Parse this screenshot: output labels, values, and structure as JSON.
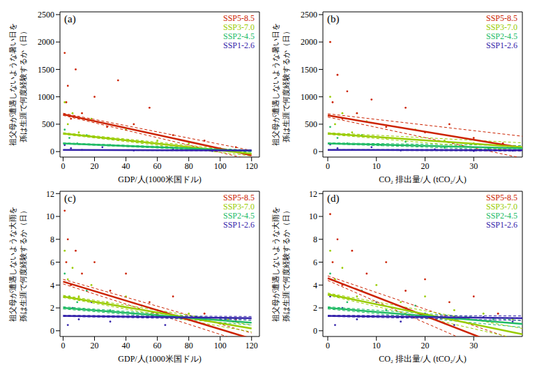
{
  "chart_data": [
    {
      "type": "scatter",
      "panel_label": "(a)",
      "xlabel": "GDP/人(1000米国ドル)",
      "ylabel": [
        "祖父母が遭遇しないような暑い日を",
        "孫は生涯で何度経験するか（日）"
      ],
      "xlim": [
        -2,
        125
      ],
      "ylim": [
        -100,
        2550
      ],
      "xticks": [
        0,
        20,
        40,
        60,
        80,
        100,
        120
      ],
      "yticks": [
        0,
        500,
        1000,
        1500,
        2000,
        2500
      ],
      "legend": "upper right",
      "series": [
        {
          "name": "SSP5-8.5",
          "color": "#cc2200",
          "x": [
            1,
            2,
            3,
            5,
            8,
            12,
            20,
            28,
            35,
            45,
            55,
            70,
            90,
            110
          ],
          "values": [
            1800,
            900,
            1200,
            600,
            1500,
            700,
            1000,
            450,
            1300,
            500,
            800,
            300,
            200,
            80
          ],
          "fit_x": [
            0,
            120
          ],
          "fit_values": [
            680,
            -70
          ],
          "band_upper": [
            700,
            20
          ],
          "band_lower": [
            660,
            -150
          ]
        },
        {
          "name": "SSP3-7.0",
          "color": "#99cc00",
          "x": [
            1,
            3,
            6,
            10,
            18,
            25,
            40,
            60,
            80,
            100
          ],
          "values": [
            900,
            500,
            700,
            350,
            600,
            250,
            400,
            200,
            150,
            60
          ],
          "fit_x": [
            0,
            120
          ],
          "fit_values": [
            330,
            -40
          ],
          "band_upper": [
            345,
            0
          ],
          "band_lower": [
            315,
            -80
          ]
        },
        {
          "name": "SSP2-4.5",
          "color": "#22bb66",
          "x": [
            1,
            4,
            9,
            15,
            30,
            50,
            75,
            100
          ],
          "values": [
            400,
            250,
            150,
            300,
            120,
            180,
            60,
            40
          ],
          "fit_x": [
            0,
            120
          ],
          "fit_values": [
            150,
            10
          ],
          "band_upper": [
            160,
            30
          ],
          "band_lower": [
            140,
            -10
          ]
        },
        {
          "name": "SSP1-2.6",
          "color": "#3322aa",
          "x": [
            1,
            5,
            12,
            25,
            45,
            70,
            95,
            115
          ],
          "values": [
            120,
            60,
            30,
            80,
            20,
            40,
            10,
            15
          ],
          "fit_x": [
            0,
            120
          ],
          "fit_values": [
            30,
            20
          ],
          "band_upper": [
            35,
            28
          ],
          "band_lower": [
            25,
            12
          ]
        }
      ]
    },
    {
      "type": "scatter",
      "panel_label": "(b)",
      "xlabel": "CO₂ 排出量/人 (tCO₂/人)",
      "ylabel": [
        "祖父母が遭遇しないような暑い日を",
        "孫は生涯で何度経験するか（日）"
      ],
      "xlim": [
        -1,
        40
      ],
      "ylim": [
        -100,
        2550
      ],
      "xticks": [
        0,
        10,
        20,
        30
      ],
      "yticks": [
        0,
        500,
        1000,
        1500,
        2000,
        2500
      ],
      "legend": "upper right",
      "series": [
        {
          "name": "SSP5-8.5",
          "color": "#cc2200",
          "x": [
            0.5,
            1,
            2,
            3,
            4,
            6,
            9,
            12,
            16,
            20,
            25,
            30,
            36
          ],
          "values": [
            2000,
            900,
            1400,
            600,
            1100,
            700,
            950,
            450,
            800,
            350,
            500,
            250,
            150
          ],
          "fit_x": [
            0,
            40
          ],
          "fit_values": [
            660,
            70
          ],
          "band_upper": [
            690,
            280
          ],
          "band_lower": [
            630,
            -120
          ]
        },
        {
          "name": "SSP3-7.0",
          "color": "#99cc00",
          "x": [
            0.5,
            1.5,
            3,
            5,
            8,
            12,
            18,
            24,
            30,
            37
          ],
          "values": [
            1000,
            500,
            700,
            350,
            550,
            250,
            400,
            200,
            150,
            100
          ],
          "fit_x": [
            0,
            40
          ],
          "fit_values": [
            330,
            80
          ],
          "band_upper": [
            345,
            160
          ],
          "band_lower": [
            315,
            10
          ]
        },
        {
          "name": "SSP2-4.5",
          "color": "#22bb66",
          "x": [
            0.5,
            2,
            4,
            7,
            11,
            16,
            24,
            33
          ],
          "values": [
            450,
            250,
            150,
            300,
            120,
            180,
            70,
            50
          ],
          "fit_x": [
            0,
            40
          ],
          "fit_values": [
            150,
            60
          ],
          "band_upper": [
            160,
            110
          ],
          "band_lower": [
            140,
            20
          ]
        },
        {
          "name": "SSP1-2.6",
          "color": "#3322aa",
          "x": [
            0.5,
            2,
            5,
            9,
            15,
            22,
            30,
            38
          ],
          "values": [
            130,
            60,
            30,
            80,
            20,
            40,
            10,
            15
          ],
          "fit_x": [
            0,
            40
          ],
          "fit_values": [
            30,
            25
          ],
          "band_upper": [
            35,
            40
          ],
          "band_lower": [
            25,
            10
          ]
        }
      ]
    },
    {
      "type": "scatter",
      "panel_label": "(c)",
      "xlabel": "GDP/人(1000米国ドル)",
      "ylabel": [
        "祖父母が遭遇しないような大雨を",
        "孫は生涯で何度経験するか（日）"
      ],
      "xlim": [
        -2,
        125
      ],
      "ylim": [
        -0.5,
        12.2
      ],
      "xticks": [
        0,
        20,
        40,
        60,
        80,
        100,
        120
      ],
      "yticks": [
        0,
        2,
        4,
        6,
        8,
        10,
        12
      ],
      "legend": "upper right",
      "series": [
        {
          "name": "SSP5-8.5",
          "color": "#cc2200",
          "x": [
            1,
            2,
            3,
            5,
            8,
            12,
            20,
            30,
            40,
            55,
            70,
            90,
            110
          ],
          "values": [
            10.5,
            6,
            8,
            4,
            7,
            5,
            6,
            3.5,
            5,
            2.5,
            3,
            1.5,
            1
          ],
          "fit_x": [
            0,
            120
          ],
          "fit_values": [
            4.3,
            -0.7
          ],
          "band_upper": [
            4.5,
            -0.2
          ],
          "band_lower": [
            4.1,
            -1.2
          ]
        },
        {
          "name": "SSP3-7.0",
          "color": "#99cc00",
          "x": [
            1,
            3,
            6,
            10,
            18,
            28,
            40,
            60,
            80,
            105
          ],
          "values": [
            7,
            4.5,
            5.5,
            3,
            4,
            2.5,
            3,
            1.8,
            1.5,
            1
          ],
          "fit_x": [
            0,
            120
          ],
          "fit_values": [
            3.0,
            0.2
          ],
          "band_upper": [
            3.1,
            0.5
          ],
          "band_lower": [
            2.9,
            -0.1
          ]
        },
        {
          "name": "SSP2-4.5",
          "color": "#22bb66",
          "x": [
            1,
            4,
            9,
            15,
            30,
            50,
            75,
            100
          ],
          "values": [
            5,
            3,
            2.5,
            3.5,
            1.8,
            2.2,
            1.2,
            1
          ],
          "fit_x": [
            0,
            120
          ],
          "fit_values": [
            2.0,
            0.7
          ],
          "band_upper": [
            2.1,
            0.9
          ],
          "band_lower": [
            1.9,
            0.5
          ]
        },
        {
          "name": "SSP1-2.6",
          "color": "#3322aa",
          "x": [
            1,
            3,
            6,
            10,
            18,
            30,
            45,
            65,
            85,
            110
          ],
          "values": [
            3,
            0.5,
            2,
            1,
            2.5,
            0.8,
            1.5,
            0.5,
            1.2,
            0.8
          ],
          "fit_x": [
            0,
            120
          ],
          "fit_values": [
            1.3,
            1.1
          ],
          "band_upper": [
            1.35,
            1.25
          ],
          "band_lower": [
            1.25,
            0.95
          ]
        }
      ]
    },
    {
      "type": "scatter",
      "panel_label": "(d)",
      "xlabel": "CO₂ 排出量/人 (tCO₂/人)",
      "ylabel": [
        "祖父母が遭遇しないような大雨を",
        "孫は生涯で何度経験するか（日）"
      ],
      "xlim": [
        -1,
        40
      ],
      "ylim": [
        -0.5,
        12.2
      ],
      "xticks": [
        0,
        10,
        20,
        30
      ],
      "yticks": [
        0,
        2,
        4,
        6,
        8,
        10,
        12
      ],
      "legend": "upper right",
      "series": [
        {
          "name": "SSP5-8.5",
          "color": "#cc2200",
          "x": [
            0.5,
            1,
            2,
            3,
            5,
            8,
            12,
            16,
            20,
            25,
            30,
            35
          ],
          "values": [
            10.2,
            6,
            8,
            4,
            7,
            5,
            6,
            3.5,
            4.5,
            2.5,
            3,
            1.5
          ],
          "fit_x": [
            0,
            40
          ],
          "fit_values": [
            4.6,
            -2.0
          ],
          "band_upper": [
            4.8,
            -1.0
          ],
          "band_lower": [
            4.4,
            -3.0
          ]
        },
        {
          "name": "SSP3-7.0",
          "color": "#99cc00",
          "x": [
            0.5,
            1.5,
            3,
            6,
            10,
            15,
            20,
            26,
            32,
            38
          ],
          "values": [
            7,
            4.5,
            5.5,
            3,
            4,
            2.5,
            3,
            1.8,
            1.5,
            1
          ],
          "fit_x": [
            0,
            40
          ],
          "fit_values": [
            3.2,
            -0.3
          ],
          "band_upper": [
            3.3,
            0.2
          ],
          "band_lower": [
            3.1,
            -0.8
          ]
        },
        {
          "name": "SSP2-4.5",
          "color": "#22bb66",
          "x": [
            0.5,
            2,
            4,
            7,
            12,
            18,
            26,
            34
          ],
          "values": [
            5,
            3,
            2.5,
            3.5,
            1.8,
            2.2,
            1.2,
            1
          ],
          "fit_x": [
            0,
            40
          ],
          "fit_values": [
            2.0,
            0.6
          ],
          "band_upper": [
            2.1,
            0.9
          ],
          "band_lower": [
            1.9,
            0.3
          ]
        },
        {
          "name": "SSP1-2.6",
          "color": "#3322aa",
          "x": [
            0.5,
            1.5,
            3,
            6,
            10,
            15,
            20,
            26,
            32,
            38
          ],
          "values": [
            3,
            0.5,
            2,
            1,
            2.5,
            0.8,
            1.5,
            0.5,
            1.2,
            0.8
          ],
          "fit_x": [
            0,
            40
          ],
          "fit_values": [
            1.3,
            1.1
          ],
          "band_upper": [
            1.35,
            1.3
          ],
          "band_lower": [
            1.25,
            0.9
          ]
        }
      ]
    }
  ]
}
